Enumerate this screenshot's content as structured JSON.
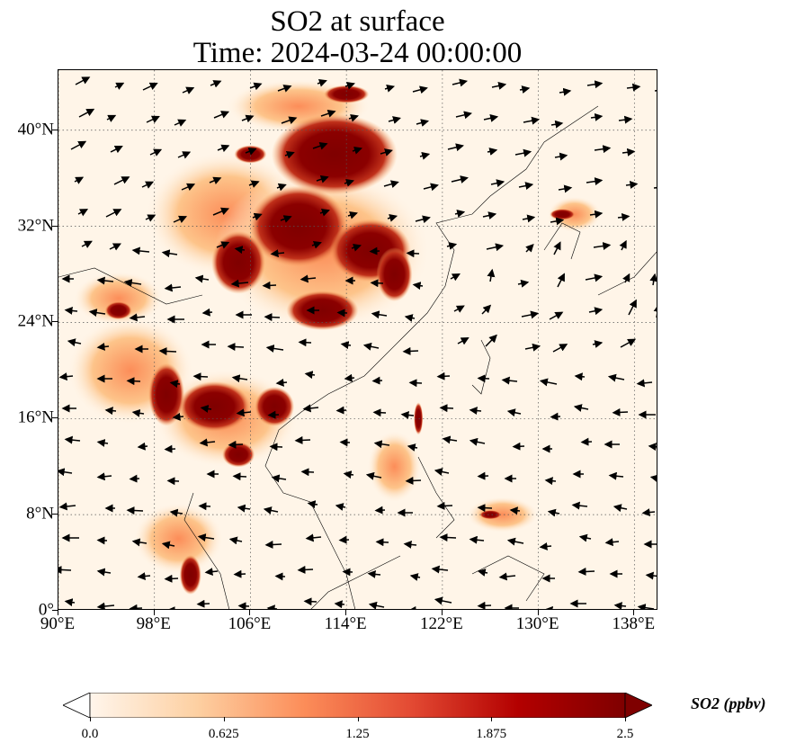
{
  "title": {
    "line1": "SO2 at surface",
    "line2": "Time: 2024-03-24 00:00:00"
  },
  "map": {
    "lon_range": [
      90,
      140
    ],
    "lat_range": [
      0,
      45
    ],
    "gridlines": "dotted",
    "lat_ticks": [
      {
        "value": 40,
        "label": "40°N"
      },
      {
        "value": 32,
        "label": "32°N"
      },
      {
        "value": 24,
        "label": "24°N"
      },
      {
        "value": 16,
        "label": "16°N"
      },
      {
        "value": 8,
        "label": "8°N"
      },
      {
        "value": 0,
        "label": "0°"
      }
    ],
    "lon_ticks": [
      {
        "value": 90,
        "label": "90°E"
      },
      {
        "value": 98,
        "label": "98°E"
      },
      {
        "value": 106,
        "label": "106°E"
      },
      {
        "value": 114,
        "label": "114°E"
      },
      {
        "value": 122,
        "label": "122°E"
      },
      {
        "value": 130,
        "label": "130°E"
      },
      {
        "value": 138,
        "label": "138°E"
      }
    ],
    "field_colors": {
      "low": "#fff5e8",
      "mid": "#fca55d",
      "high": "#d03a1a",
      "max": "#7f0000"
    }
  },
  "colorbar": {
    "label": "SO2 (ppbv)",
    "range": [
      0,
      2.5
    ],
    "extend": "both",
    "ticks": [
      "0.0",
      "0.625",
      "1.25",
      "1.875",
      "2.5"
    ],
    "colors": [
      "#fff5eb",
      "#fdd0a2",
      "#fc8d59",
      "#e34a33",
      "#b30000",
      "#7f0000"
    ]
  }
}
